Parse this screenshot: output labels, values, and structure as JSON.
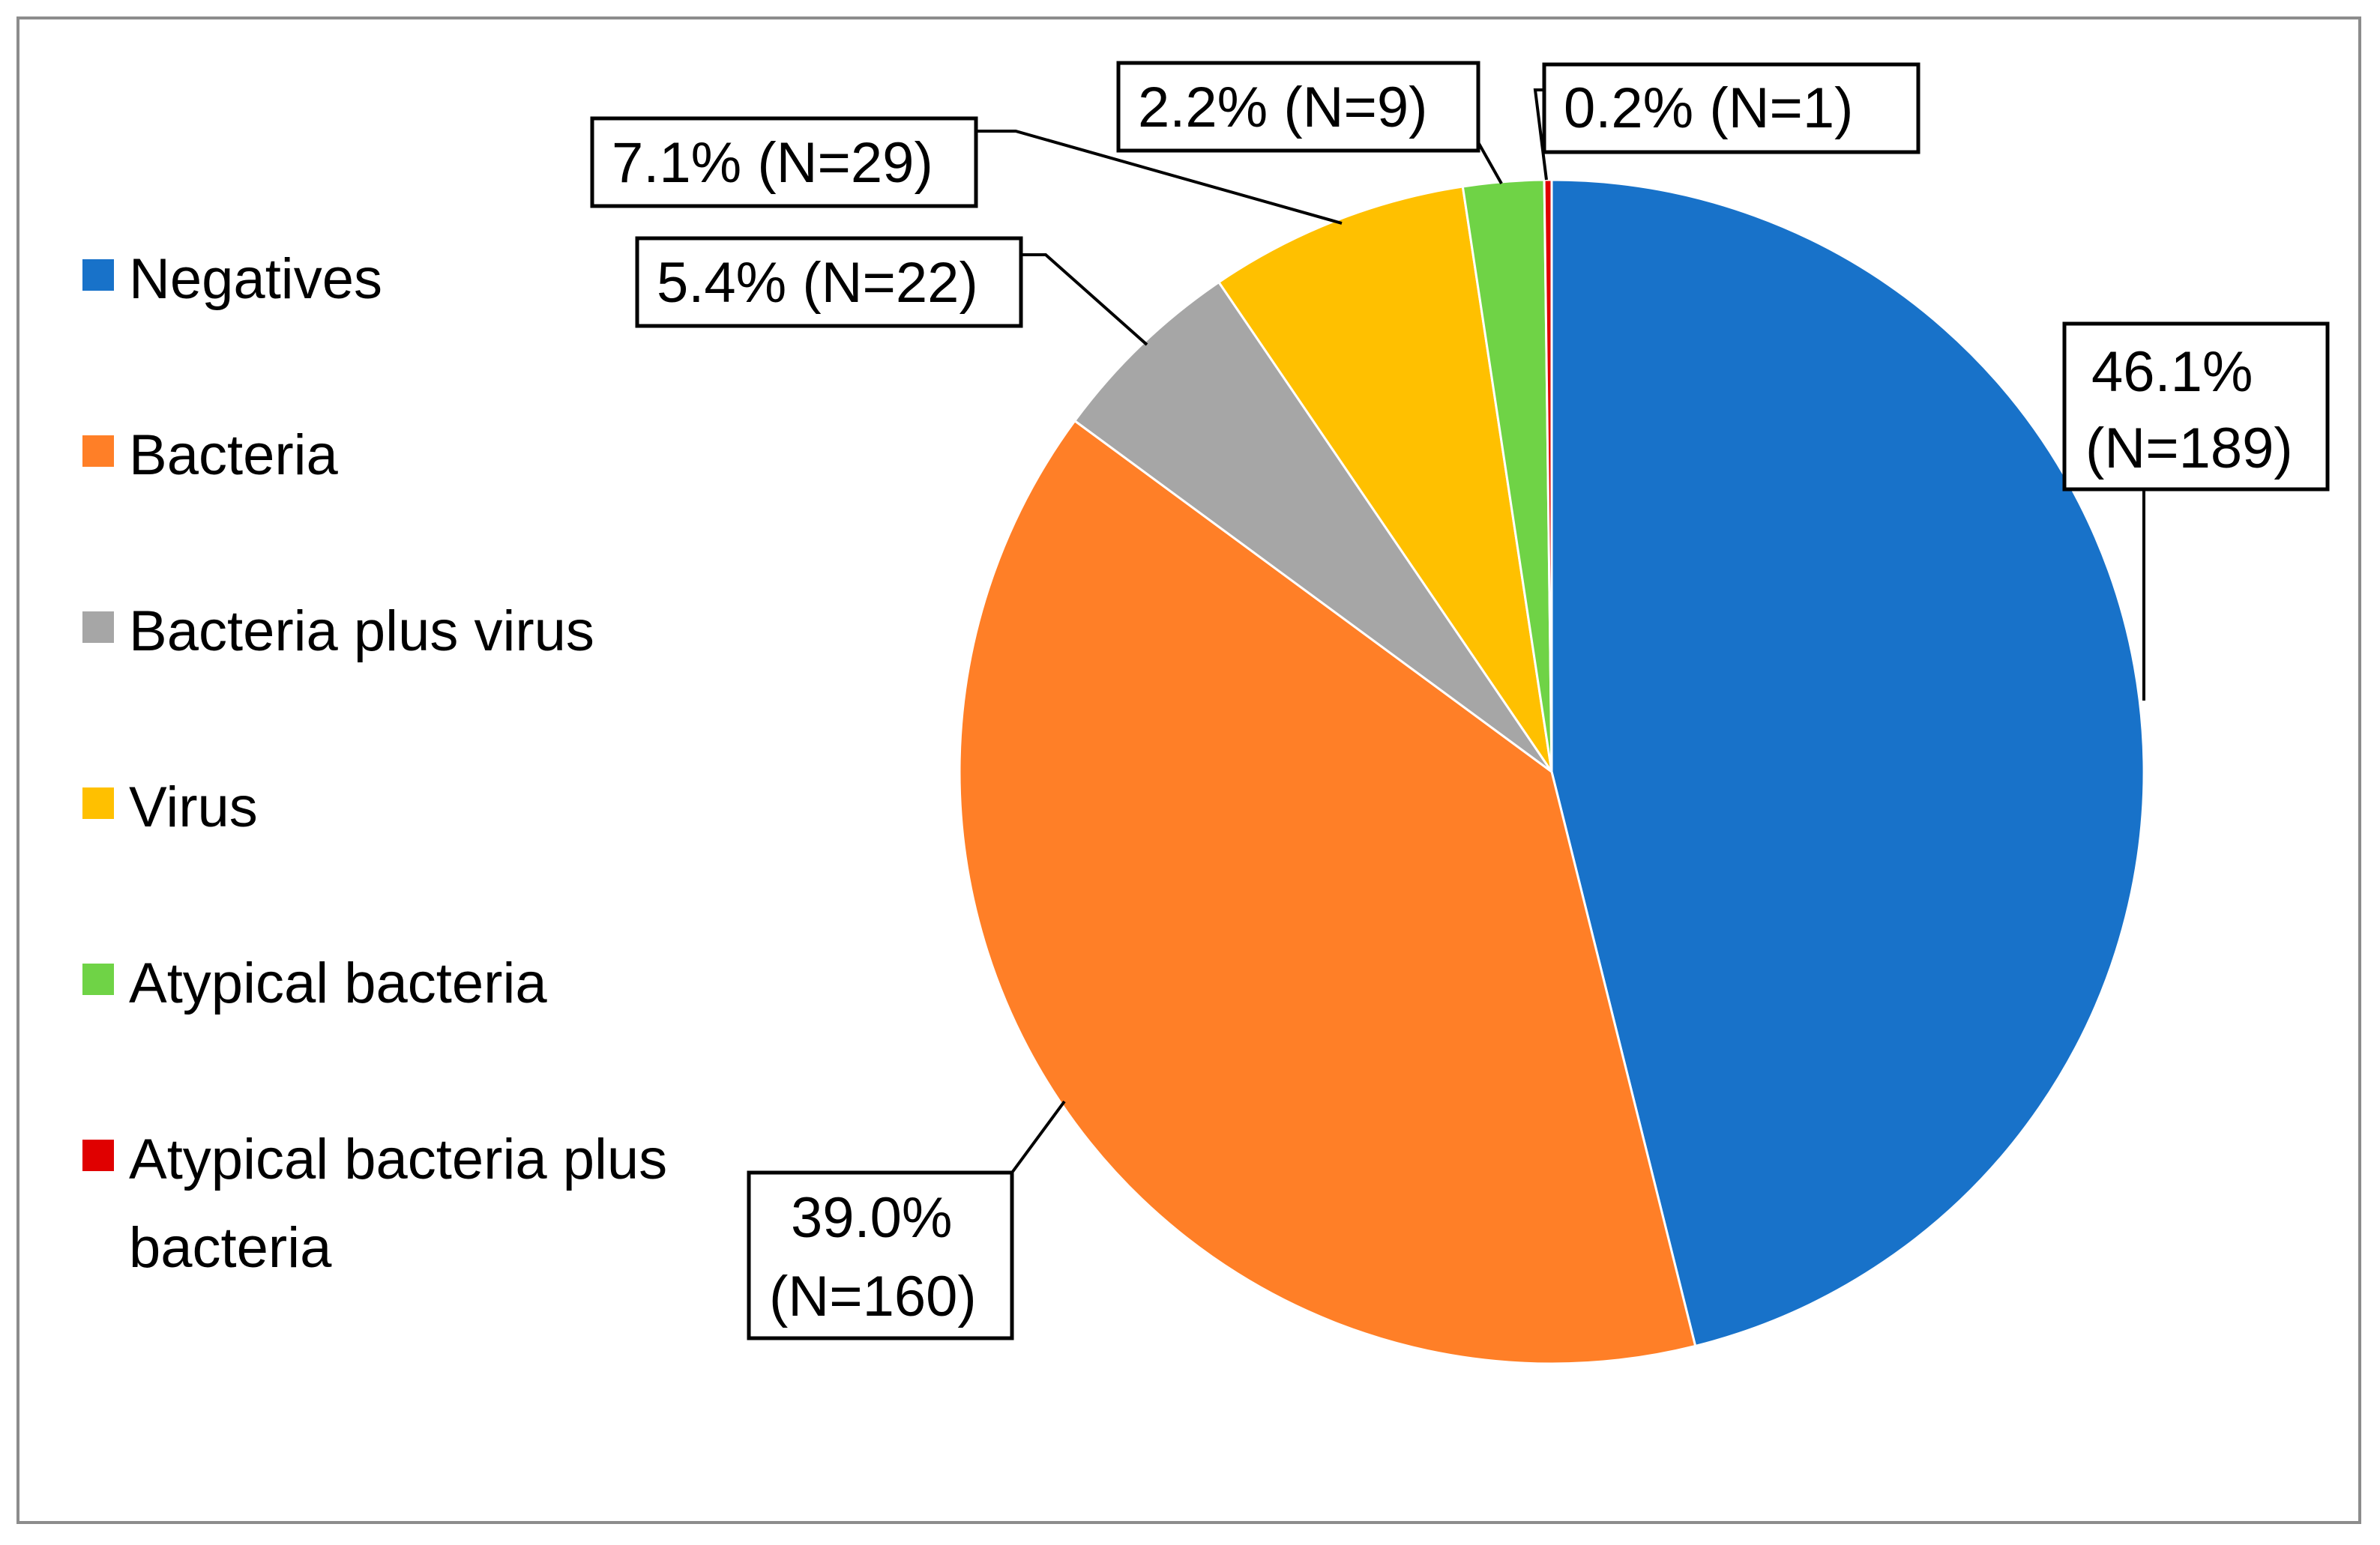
{
  "chart_data": {
    "type": "pie",
    "title": "",
    "legend_placement": "left",
    "slices": [
      {
        "name": "Negatives",
        "value": 46.1,
        "n": 189,
        "label_lines": [
          "46.1%",
          "(N=189)"
        ],
        "color": "#1872C9"
      },
      {
        "name": "Bacteria",
        "value": 39.0,
        "n": 160,
        "label_lines": [
          "39.0%",
          "(N=160)"
        ],
        "color": "#FF7F27"
      },
      {
        "name": "Bacteria plus virus",
        "value": 5.4,
        "n": 22,
        "label_lines": [
          "5.4% (N=22)"
        ],
        "color": "#A6A6A6"
      },
      {
        "name": "Virus",
        "value": 7.1,
        "n": 29,
        "label_lines": [
          "7.1% (N=29)"
        ],
        "color": "#FFC000"
      },
      {
        "name": "Atypical bacteria",
        "value": 2.2,
        "n": 9,
        "label_lines": [
          "2.2% (N=9)"
        ],
        "color": "#6FD346"
      },
      {
        "name": "Atypical bacteria plus bacteria",
        "value": 0.2,
        "n": 1,
        "label_lines": [
          "0.2% (N=1)"
        ],
        "color": "#E00000"
      }
    ],
    "legend": [
      {
        "lines": [
          "Negatives"
        ]
      },
      {
        "lines": [
          "Bacteria"
        ]
      },
      {
        "lines": [
          "Bacteria plus virus"
        ]
      },
      {
        "lines": [
          "Virus"
        ]
      },
      {
        "lines": [
          "Atypical bacteria"
        ]
      },
      {
        "lines": [
          "Atypical bacteria plus",
          "bacteria"
        ]
      }
    ]
  }
}
